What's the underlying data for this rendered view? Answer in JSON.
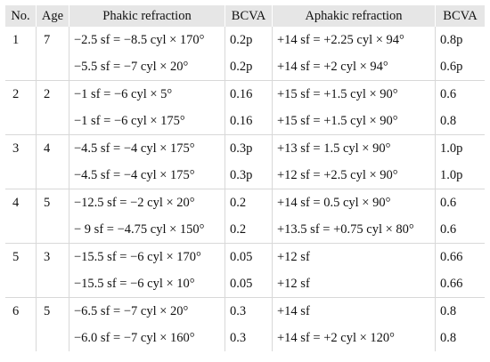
{
  "table": {
    "headers": {
      "no": "No.",
      "age": "Age",
      "phakic": "Phakic refraction",
      "bcva1": "BCVA",
      "aphakic": "Aphakic refraction",
      "bcva2": "BCVA"
    },
    "rows": [
      {
        "no": "1",
        "age": "7",
        "phakic": "−2.5 sf = −8.5 cyl × 170°",
        "bcva1": "0.2p",
        "aphakic": "+14 sf = +2.25 cyl × 94°",
        "bcva2": "0.8p"
      },
      {
        "no": "",
        "age": "",
        "phakic": "−5.5 sf = −7 cyl × 20°",
        "bcva1": "0.2p",
        "aphakic": "+14 sf = +2 cyl × 94°",
        "bcva2": "0.6p"
      },
      {
        "no": "2",
        "age": "2",
        "phakic": "−1 sf = −6 cyl × 5°",
        "bcva1": "0.16",
        "aphakic": "+15 sf = +1.5 cyl × 90°",
        "bcva2": "0.6"
      },
      {
        "no": "",
        "age": "",
        "phakic": "−1 sf = −6 cyl × 175°",
        "bcva1": "0.16",
        "aphakic": "+15 sf = +1.5 cyl × 90°",
        "bcva2": "0.8"
      },
      {
        "no": "3",
        "age": "4",
        "phakic": "−4.5 sf = −4 cyl × 175°",
        "bcva1": "0.3p",
        "aphakic": "+13 sf = 1.5 cyl × 90°",
        "bcva2": "1.0p"
      },
      {
        "no": "",
        "age": "",
        "phakic": "−4.5 sf = −4 cyl × 175°",
        "bcva1": "0.3p",
        "aphakic": "+12 sf = +2.5 cyl × 90°",
        "bcva2": "1.0p"
      },
      {
        "no": "4",
        "age": "5",
        "phakic": "−12.5 sf = −2 cyl × 20°",
        "bcva1": "0.2",
        "aphakic": "+14 sf = 0.5 cyl × 90°",
        "bcva2": "0.6"
      },
      {
        "no": "",
        "age": "",
        "phakic": "− 9 sf = −4.75 cyl × 150°",
        "bcva1": "0.2",
        "aphakic": "+13.5 sf = +0.75 cyl × 80°",
        "bcva2": "0.6"
      },
      {
        "no": "5",
        "age": "3",
        "phakic": "−15.5 sf = −6 cyl × 170°",
        "bcva1": "0.05",
        "aphakic": "+12 sf",
        "bcva2": "0.66"
      },
      {
        "no": "",
        "age": "",
        "phakic": "−15.5 sf = −6 cyl × 10°",
        "bcva1": "0.05",
        "aphakic": "+12 sf",
        "bcva2": "0.66"
      },
      {
        "no": "6",
        "age": "5",
        "phakic": "−6.5 sf = −7 cyl × 20°",
        "bcva1": "0.3",
        "aphakic": "+14 sf",
        "bcva2": "0.8"
      },
      {
        "no": "",
        "age": "",
        "phakic": "−6.0 sf = −7 cyl × 160°",
        "bcva1": "0.3",
        "aphakic": "+14 sf = +2 cyl × 120°",
        "bcva2": "0.8"
      }
    ]
  }
}
